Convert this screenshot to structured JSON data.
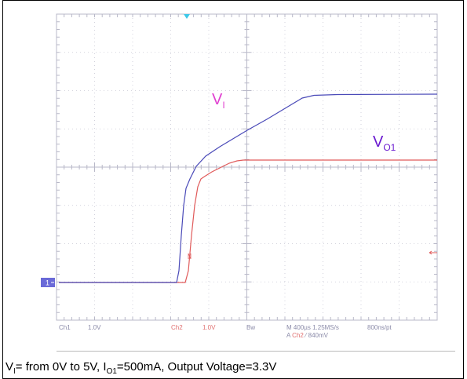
{
  "scope": {
    "trace_labels": {
      "vi": {
        "main": "V",
        "sub": "I"
      },
      "vo1": {
        "main": "V",
        "sub": "O1"
      }
    },
    "channel_marker": "1",
    "status": {
      "ch1": "Ch1",
      "ch1_scale": "1.0V",
      "ch2": "Ch2",
      "ch2_scale": "1.0V",
      "bw": "Bw",
      "timebase": "M 400µs 1.25MS/s",
      "resolution": "800ns/pt",
      "trigger_prefix": "A",
      "trigger_channel": "Ch2",
      "trigger_slope": "⁄",
      "trigger_level": "840mV"
    }
  },
  "caption": {
    "parts": [
      "V",
      "I",
      "= from 0V to 5V, I",
      "O1",
      "=500mA, Output Voltage=3.3V"
    ]
  }
}
